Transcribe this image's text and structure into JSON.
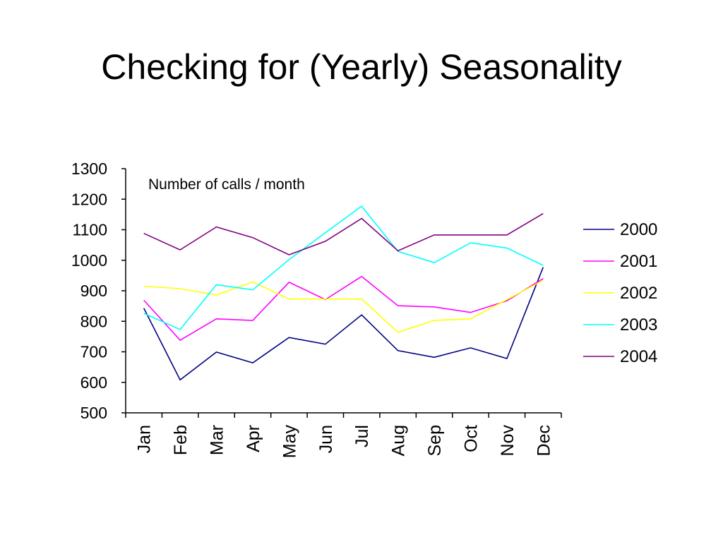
{
  "slide": {
    "title": "Checking for (Yearly) Seasonality"
  },
  "chart_data": {
    "type": "line",
    "title": "",
    "annotation": "Number of calls / month",
    "xlabel": "",
    "ylabel": "",
    "categories": [
      "Jan",
      "Feb",
      "Mar",
      "Apr",
      "May",
      "Jun",
      "Jul",
      "Aug",
      "Sep",
      "Oct",
      "Nov",
      "Dec"
    ],
    "ylim": [
      500,
      1300
    ],
    "yticks": [
      500,
      600,
      700,
      800,
      900,
      1000,
      1100,
      1200,
      1300
    ],
    "grid": false,
    "legend_position": "right",
    "series": [
      {
        "name": "2000",
        "color": "#000080",
        "values": [
          843,
          608,
          699,
          664,
          747,
          725,
          821,
          704,
          682,
          713,
          678,
          977
        ]
      },
      {
        "name": "2001",
        "color": "#ff00ff",
        "values": [
          869,
          738,
          808,
          803,
          928,
          871,
          947,
          851,
          847,
          829,
          867,
          940
        ]
      },
      {
        "name": "2002",
        "color": "#ffff00",
        "values": [
          915,
          907,
          886,
          929,
          873,
          873,
          873,
          764,
          803,
          808,
          871,
          934
        ]
      },
      {
        "name": "2003",
        "color": "#00ffff",
        "values": [
          826,
          773,
          920,
          903,
          1002,
          1090,
          1177,
          1029,
          992,
          1057,
          1040,
          983
        ]
      },
      {
        "name": "2004",
        "color": "#800080",
        "values": [
          1088,
          1034,
          1109,
          1074,
          1018,
          1062,
          1137,
          1031,
          1083,
          1083,
          1083,
          1153
        ]
      }
    ]
  }
}
